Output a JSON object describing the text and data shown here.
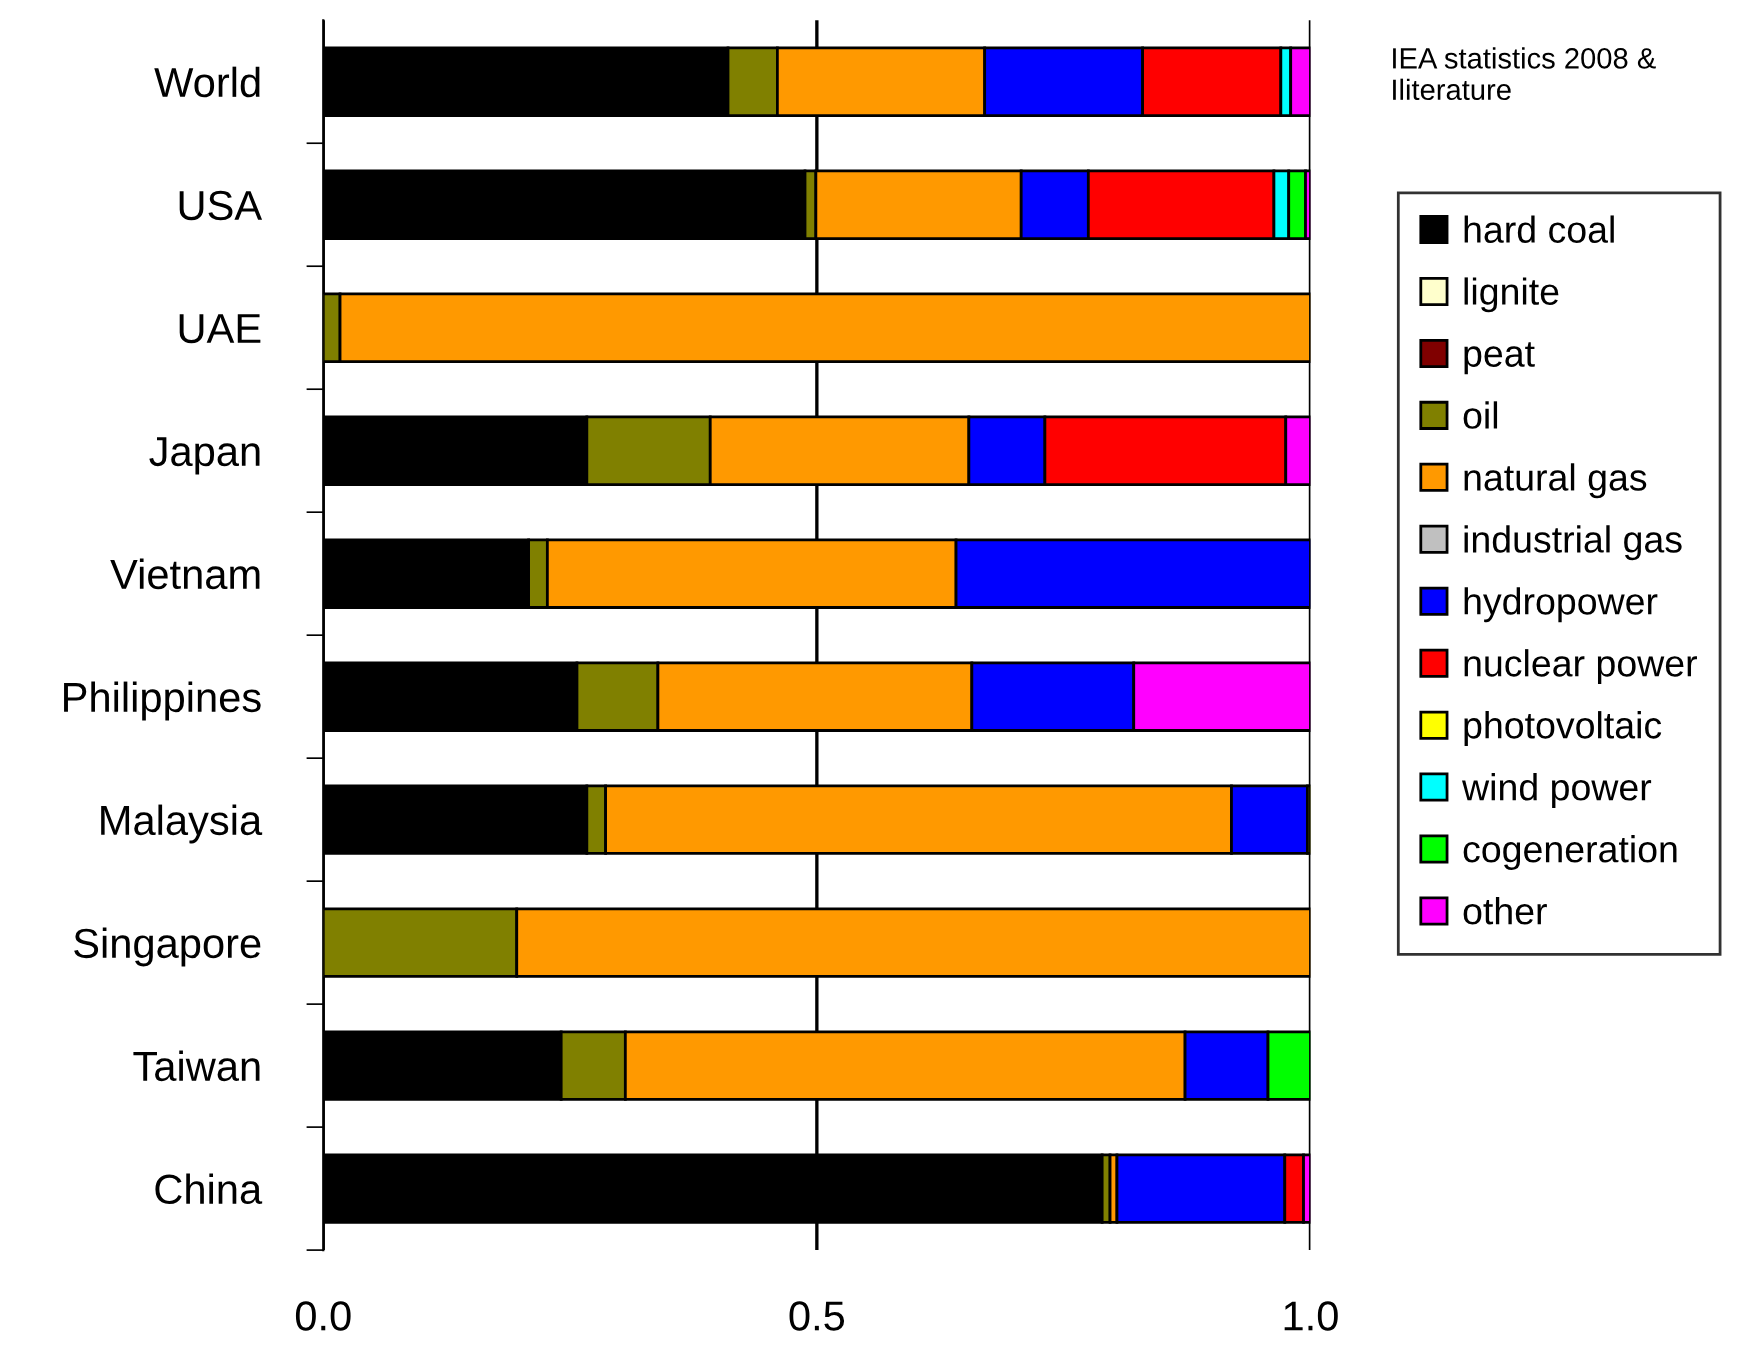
{
  "chart_data": {
    "type": "bar",
    "orientation": "horizontal",
    "stacked": true,
    "categories": [
      "World",
      "USA",
      "UAE",
      "Japan",
      "Vietnam",
      "Philippines",
      "Malaysia",
      "Singapore",
      "Taiwan",
      "China"
    ],
    "series": [
      {
        "name": "hard coal",
        "color": "#000000",
        "values": [
          0.41,
          0.488,
          0,
          0.267,
          0.208,
          0.257,
          0.267,
          0,
          0.241,
          0.789
        ]
      },
      {
        "name": "lignite",
        "color": "#ffffcc",
        "values": [
          null,
          null,
          null,
          null,
          null,
          null,
          null,
          null,
          null,
          null
        ]
      },
      {
        "name": "peat",
        "color": "#800000",
        "values": [
          null,
          null,
          null,
          null,
          null,
          null,
          null,
          null,
          null,
          null
        ]
      },
      {
        "name": "oil",
        "color": "#808000",
        "values": [
          0.05,
          0.011,
          0.017,
          0.125,
          0.019,
          0.082,
          0.019,
          0.196,
          0.065,
          0.008
        ]
      },
      {
        "name": "natural gas",
        "color": "#ff9900",
        "values": [
          0.21,
          0.208,
          0.983,
          0.262,
          0.414,
          0.318,
          0.634,
          0.804,
          0.567,
          0.007
        ]
      },
      {
        "name": "industrial gas",
        "color": "#c0c0c0",
        "values": [
          null,
          null,
          null,
          null,
          null,
          null,
          null,
          null,
          null,
          null
        ]
      },
      {
        "name": "hydropower",
        "color": "#0000ff",
        "values": [
          0.16,
          0.068,
          0,
          0.077,
          0.359,
          0.164,
          0.077,
          0,
          0.084,
          0.17
        ]
      },
      {
        "name": "nuclear power",
        "color": "#ff0000",
        "values": [
          0.14,
          0.188,
          0,
          0.244,
          0,
          0,
          0,
          0,
          0,
          0.019
        ]
      },
      {
        "name": "photovoltaic",
        "color": "#ffff00",
        "values": [
          0,
          0,
          0,
          0,
          0,
          0,
          0.003,
          0,
          0,
          0
        ]
      },
      {
        "name": "wind power",
        "color": "#00ffff",
        "values": [
          0.01,
          0.015,
          0,
          0,
          0,
          0,
          0,
          0,
          0,
          0
        ]
      },
      {
        "name": "cogeneration",
        "color": "#00ff00",
        "values": [
          0,
          0.017,
          0,
          0,
          0,
          0,
          0,
          0,
          0.043,
          0
        ]
      },
      {
        "name": "other",
        "color": "#ff00ff",
        "values": [
          0.02,
          0.005,
          0,
          0.025,
          0,
          0.179,
          0,
          0,
          0,
          0.007
        ]
      }
    ],
    "xlim": [
      0,
      1
    ],
    "xticks": [
      {
        "value": 0,
        "label": "0.0"
      },
      {
        "value": 0.5,
        "label": "0.5"
      },
      {
        "value": 1,
        "label": "1.0"
      }
    ],
    "grid": "x",
    "legend": "right",
    "annotations": [
      "IEA statistics 2008 & Iliterature"
    ]
  }
}
